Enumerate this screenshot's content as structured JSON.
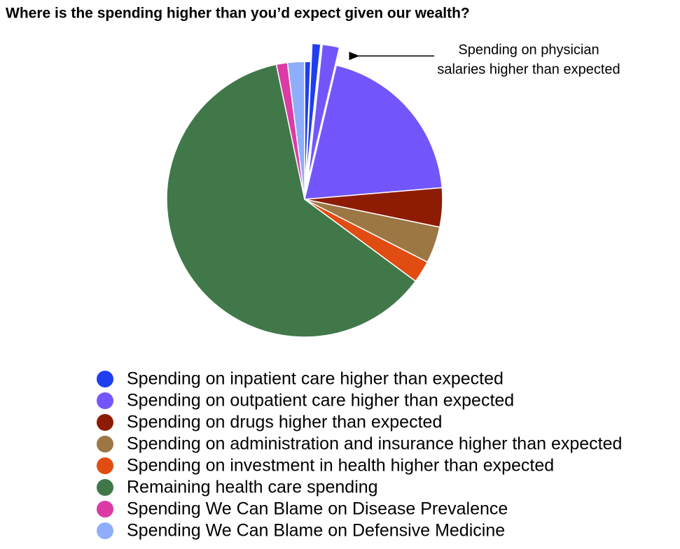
{
  "chart_data": {
    "type": "pie",
    "title": "Where is the spending higher than you’d expect given our wealth?",
    "annotation": [
      "Spending on physician",
      "salaries higher than expected"
    ],
    "series": [
      {
        "name": "Spending on inpatient care higher than expected",
        "color": "#1f3ef0",
        "values": [
          0.7,
          1.0
        ],
        "exploded": [
          false,
          true
        ]
      },
      {
        "name": "Spending on outpatient care higher than expected",
        "color": "#7356fb",
        "values": [
          2.0,
          20.0
        ],
        "exploded": [
          true,
          false
        ]
      },
      {
        "name": "Spending on drugs higher than expected",
        "color": "#8e1c05",
        "values": [
          4.6
        ],
        "exploded": [
          false
        ]
      },
      {
        "name": "Spending on administration and insurance higher than expected",
        "color": "#9c7744",
        "values": [
          4.3
        ],
        "exploded": [
          false
        ]
      },
      {
        "name": "Spending on investment in health higher than expected",
        "color": "#e04c12",
        "values": [
          2.6
        ],
        "exploded": [
          false
        ]
      },
      {
        "name": "Remaining health care spending",
        "color": "#41784a",
        "values": [
          61.7
        ],
        "exploded": [
          false
        ]
      },
      {
        "name": "Spending We Can Blame on Disease Prevalence",
        "color": "#dc3ba6",
        "values": [
          1.3
        ],
        "exploded": [
          false
        ]
      },
      {
        "name": "Spending We Can Blame on Defensive Medicine",
        "color": "#8eaefc",
        "values": [
          2.0
        ],
        "exploded": [
          false
        ]
      }
    ]
  }
}
